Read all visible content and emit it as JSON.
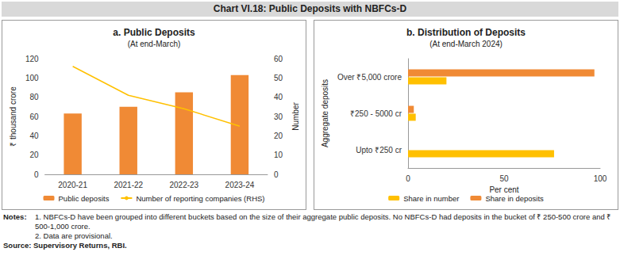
{
  "title": "Chart VI.18: Public Deposits with NBFCs-D",
  "chart_data": [
    {
      "type": "bar",
      "title": "a. Public Deposits",
      "subtitle": "(At end-March)",
      "categories": [
        "2020-21",
        "2021-22",
        "2022-23",
        "2023-24"
      ],
      "series": [
        {
          "name": "Public deposits",
          "type": "bar",
          "color": "#f08a35",
          "values": [
            63,
            70,
            85,
            103
          ]
        },
        {
          "name": "Number of reporting companies (RHS)",
          "type": "line",
          "color": "#ffc000",
          "marker": "none",
          "axis": "y2",
          "values": [
            56,
            41,
            34,
            25
          ]
        }
      ],
      "ylabel": "₹ thousand crore",
      "y2label": "Number",
      "ylim": [
        0,
        120
      ],
      "yticks": [
        0,
        20,
        40,
        60,
        80,
        100,
        120
      ],
      "y2lim": [
        0,
        60
      ],
      "y2ticks": [
        0,
        10,
        20,
        30,
        40,
        50,
        60
      ],
      "legend": "bottom",
      "grid": false
    },
    {
      "type": "bar",
      "orientation": "horizontal",
      "title": "b. Distribution of Deposits",
      "subtitle": "(At end-March 2024)",
      "categories": [
        "Upto ₹250 cr",
        "₹250 - 5000 cr",
        "Over ₹5,000 crore"
      ],
      "series": [
        {
          "name": "Share in number",
          "color": "#ffc000",
          "values": [
            76,
            4,
            20
          ]
        },
        {
          "name": "Share in deposits",
          "color": "#f08a35",
          "values": [
            0,
            3,
            97
          ]
        }
      ],
      "xlabel": "Per cent",
      "ylabel": "Aggregate deposits",
      "xlim": [
        0,
        100
      ],
      "xticks": [
        0,
        50,
        100
      ],
      "legend": "bottom",
      "grid": false
    }
  ],
  "notes": {
    "label": "Notes:",
    "items": [
      "1. NBFCs-D have been grouped into different buckets based on the size of their aggregate public deposits. No NBFCs-D had deposits in the bucket of ₹ 250-500 crore and ₹ 500-1,000 crore.",
      "2. Data are provisional."
    ]
  },
  "source": "Source: Supervisory Returns, RBI."
}
